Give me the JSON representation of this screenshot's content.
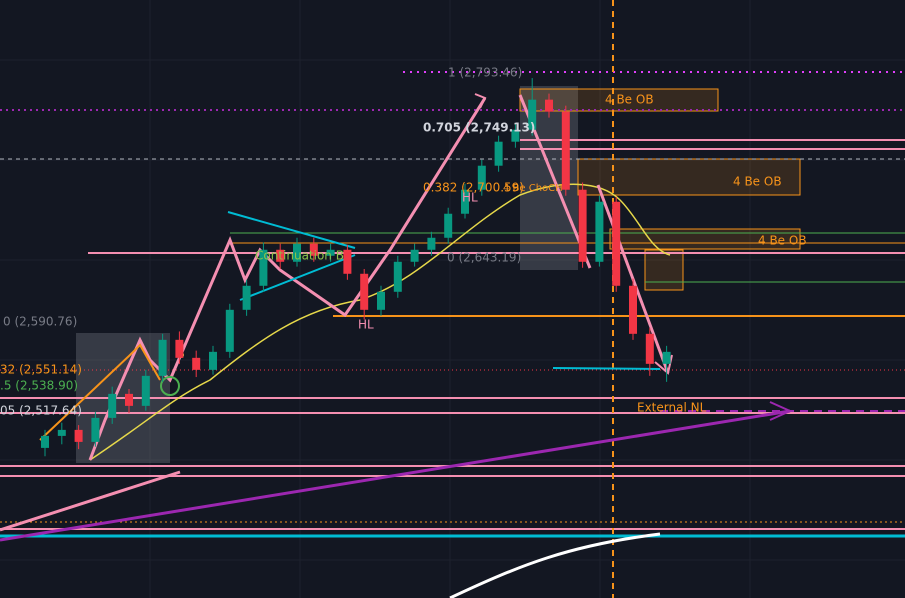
{
  "chart_data": {
    "type": "candlestick",
    "ylim": [
      2360,
      2858
    ],
    "up_color": "#089981",
    "down_color": "#f23645",
    "candles": [
      [
        2485,
        2500,
        2478,
        2495
      ],
      [
        2495,
        2506,
        2488,
        2500
      ],
      [
        2500,
        2504,
        2484,
        2490
      ],
      [
        2490,
        2515,
        2486,
        2510
      ],
      [
        2510,
        2536,
        2505,
        2530
      ],
      [
        2530,
        2534,
        2514,
        2520
      ],
      [
        2520,
        2550,
        2516,
        2545
      ],
      [
        2545,
        2580,
        2540,
        2575
      ],
      [
        2575,
        2582,
        2555,
        2560
      ],
      [
        2560,
        2566,
        2544,
        2550
      ],
      [
        2550,
        2570,
        2546,
        2565
      ],
      [
        2565,
        2605,
        2560,
        2600
      ],
      [
        2600,
        2625,
        2595,
        2620
      ],
      [
        2620,
        2656,
        2615,
        2650
      ],
      [
        2650,
        2655,
        2634,
        2640
      ],
      [
        2640,
        2660,
        2636,
        2655
      ],
      [
        2655,
        2660,
        2640,
        2645
      ],
      [
        2645,
        2655,
        2640,
        2650
      ],
      [
        2650,
        2654,
        2625,
        2630
      ],
      [
        2630,
        2634,
        2592,
        2600
      ],
      [
        2600,
        2620,
        2595,
        2615
      ],
      [
        2615,
        2645,
        2610,
        2640
      ],
      [
        2640,
        2655,
        2636,
        2650
      ],
      [
        2650,
        2665,
        2645,
        2660
      ],
      [
        2660,
        2685,
        2655,
        2680
      ],
      [
        2680,
        2705,
        2676,
        2700
      ],
      [
        2700,
        2725,
        2695,
        2720
      ],
      [
        2720,
        2745,
        2715,
        2740
      ],
      [
        2740,
        2755,
        2735,
        2750
      ],
      [
        2750,
        2793,
        2745,
        2775
      ],
      [
        2775,
        2780,
        2760,
        2765
      ],
      [
        2765,
        2770,
        2695,
        2700
      ],
      [
        2700,
        2706,
        2635,
        2640
      ],
      [
        2640,
        2695,
        2636,
        2690
      ],
      [
        2690,
        2694,
        2615,
        2620
      ],
      [
        2620,
        2626,
        2575,
        2580
      ],
      [
        2580,
        2585,
        2545,
        2555
      ],
      [
        2555,
        2570,
        2540,
        2565
      ]
    ],
    "labels": [
      "1 (2,793.46)",
      "4 Be OB",
      "0.705 (2,749.13)",
      "0.382 (2,700.59)",
      "4 Be OB",
      "HL",
      "4 Be OB",
      "0 (2,643.19)",
      "Continuation B",
      "0 (2,590.76)",
      "HL",
      "32 (2,551.14)",
      ".5 (2,538.90)",
      "05 (2,517.64)",
      "External NL",
      "4 Be ChoCH"
    ]
  }
}
